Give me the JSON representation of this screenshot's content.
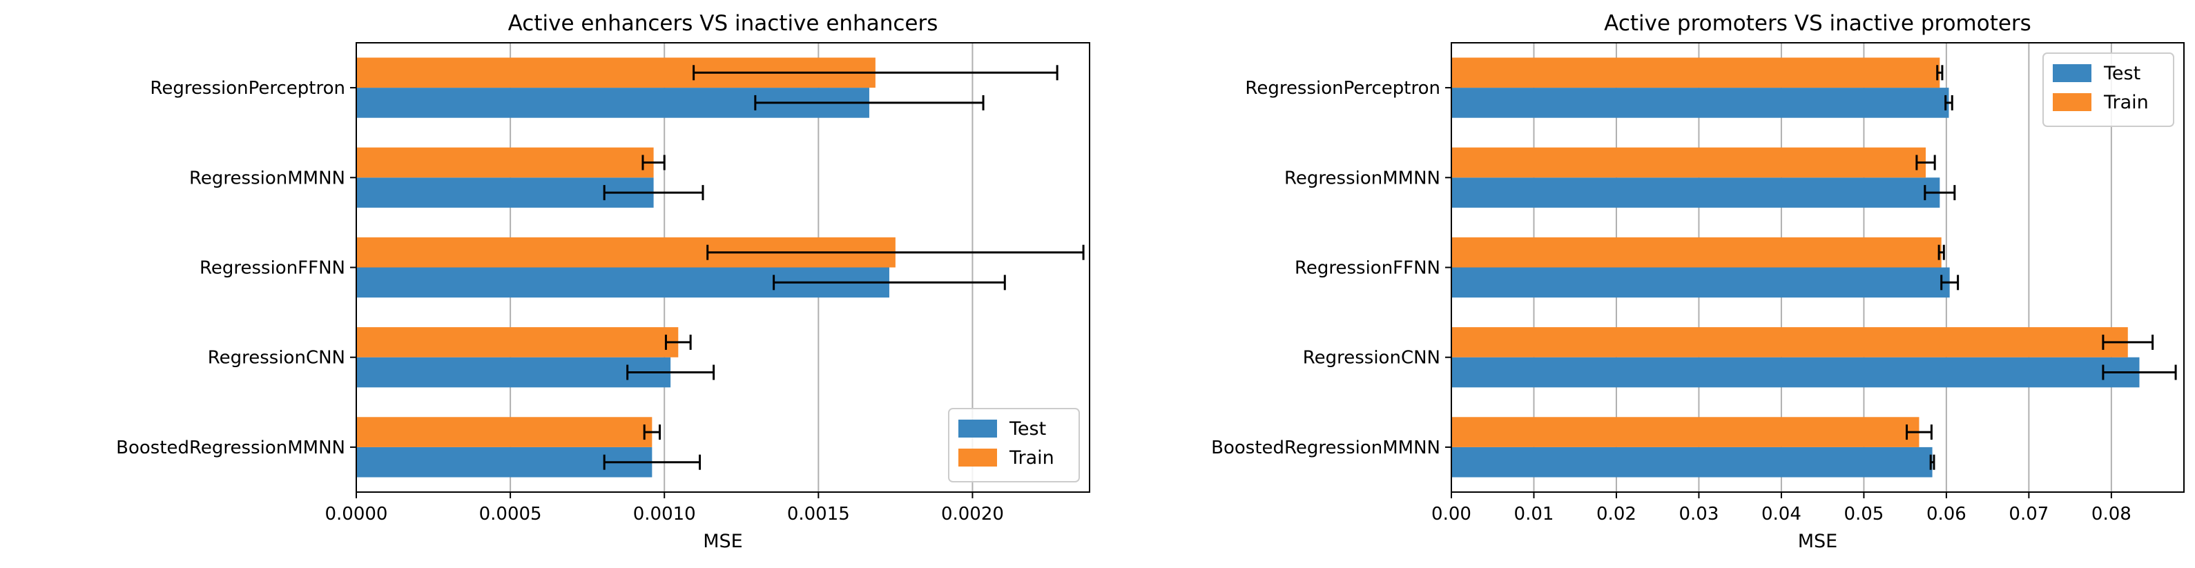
{
  "chart_data": [
    {
      "type": "bar",
      "orientation": "horizontal",
      "title": "Active enhancers VS inactive enhancers",
      "xlabel": "MSE",
      "ylabel": "",
      "xlim": [
        0,
        0.00238
      ],
      "xticks": [
        0,
        0.0005,
        0.001,
        0.0015,
        0.002
      ],
      "xtick_labels": [
        "0.0000",
        "0.0005",
        "0.0010",
        "0.0015",
        "0.0020"
      ],
      "grid": "x",
      "legend": "lower-right",
      "categories": [
        "RegressionPerceptron",
        "RegressionMMNN",
        "RegressionFFNN",
        "RegressionCNN",
        "BoostedRegressionMMNN"
      ],
      "series": [
        {
          "name": "Test",
          "color": "#3a86bf",
          "values": [
            0.001665,
            0.000965,
            0.00173,
            0.00102,
            0.00096
          ],
          "errors": [
            0.00037,
            0.00016,
            0.000375,
            0.00014,
            0.000155
          ]
        },
        {
          "name": "Train",
          "color": "#f98b2a",
          "values": [
            0.001685,
            0.000965,
            0.00175,
            0.001045,
            0.00096
          ],
          "errors": [
            0.00059,
            3.5e-05,
            0.00061,
            4e-05,
            2.5e-05
          ]
        }
      ]
    },
    {
      "type": "bar",
      "orientation": "horizontal",
      "title": "Active promoters VS inactive promoters",
      "xlabel": "MSE",
      "ylabel": "",
      "xlim": [
        0,
        0.0888
      ],
      "xticks": [
        0,
        0.01,
        0.02,
        0.03,
        0.04,
        0.05,
        0.06,
        0.07,
        0.08
      ],
      "xtick_labels": [
        "0.00",
        "0.01",
        "0.02",
        "0.03",
        "0.04",
        "0.05",
        "0.06",
        "0.07",
        "0.08"
      ],
      "grid": "x",
      "legend": "upper-right",
      "categories": [
        "RegressionPerceptron",
        "RegressionMMNN",
        "RegressionFFNN",
        "RegressionCNN",
        "BoostedRegressionMMNN"
      ],
      "series": [
        {
          "name": "Test",
          "color": "#3a86bf",
          "values": [
            0.0603,
            0.0592,
            0.0604,
            0.0834,
            0.0583
          ],
          "errors": [
            0.0004,
            0.0018,
            0.001,
            0.0044,
            0.0002
          ]
        },
        {
          "name": "Train",
          "color": "#f98b2a",
          "values": [
            0.0592,
            0.0575,
            0.0594,
            0.082,
            0.0567
          ],
          "errors": [
            0.0003,
            0.0011,
            0.0003,
            0.003,
            0.0015
          ]
        }
      ]
    }
  ]
}
